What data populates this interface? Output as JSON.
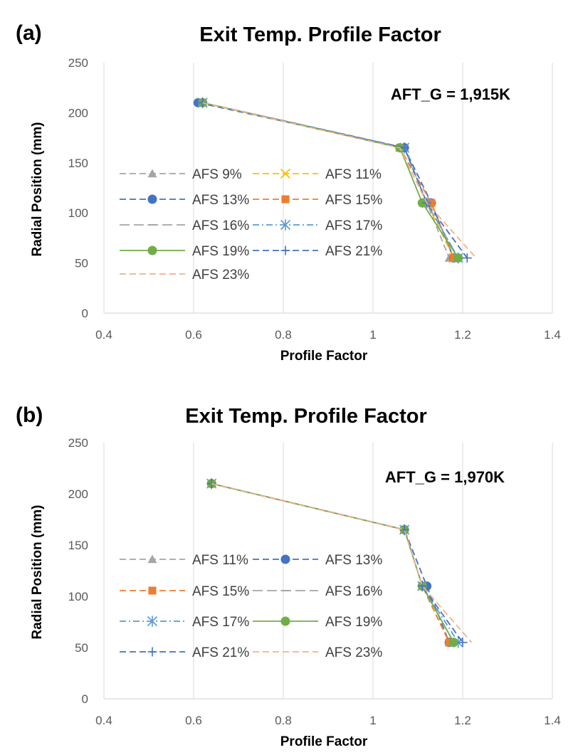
{
  "chart_data": [
    {
      "type": "line",
      "panel_label": "(a)",
      "title": "Exit Temp. Profile Factor",
      "xlabel": "Profile Factor",
      "ylabel": "Radial Position (mm)",
      "xlim": [
        0.4,
        1.4
      ],
      "ylim": [
        0,
        250
      ],
      "xticks": [
        0.4,
        0.6,
        0.8,
        1,
        1.2,
        1.4
      ],
      "xtick_labels": [
        "0.4",
        "0.6",
        "0.8",
        "1",
        "1.2",
        "1.4"
      ],
      "yticks": [
        0,
        50,
        100,
        150,
        200,
        250
      ],
      "ytick_labels": [
        "0",
        "50",
        "100",
        "150",
        "200",
        "250"
      ],
      "grid": "vertical",
      "annotation": "AFT_G = 1,915K",
      "legend_position": "center-left",
      "legend_columns": 2,
      "y": [
        210,
        165,
        110,
        55
      ],
      "series": [
        {
          "name": "AFS 9%",
          "marker": "triangle",
          "color": "#a5a5a5",
          "dash": "dash",
          "x": [
            0.62,
            1.06,
            1.12,
            1.17
          ]
        },
        {
          "name": "AFS 11%",
          "marker": "x",
          "color": "#ffc000",
          "dash": "dash",
          "x": [
            0.62,
            1.07,
            1.12,
            1.18
          ]
        },
        {
          "name": "AFS 13%",
          "marker": "circle",
          "color": "#4472c4",
          "dash": "dash",
          "x": [
            0.61,
            1.07,
            1.13,
            1.18
          ]
        },
        {
          "name": "AFS 15%",
          "marker": "square",
          "color": "#ed7d31",
          "dash": "dash",
          "x": [
            0.62,
            1.06,
            1.13,
            1.18
          ]
        },
        {
          "name": "AFS 16%",
          "marker": "dash",
          "color": "#a5a5a5",
          "dash": "longdash",
          "x": [
            0.62,
            1.07,
            1.12,
            1.19
          ]
        },
        {
          "name": "AFS 17%",
          "marker": "asterisk",
          "color": "#5b9bd5",
          "dash": "dashdot",
          "x": [
            0.62,
            1.07,
            1.12,
            1.19
          ]
        },
        {
          "name": "AFS 19%",
          "marker": "circle",
          "color": "#70ad47",
          "dash": "solid",
          "x": [
            0.62,
            1.06,
            1.11,
            1.19
          ]
        },
        {
          "name": "AFS 21%",
          "marker": "plus",
          "color": "#4472c4",
          "dash": "dash",
          "x": [
            0.62,
            1.07,
            1.12,
            1.21
          ]
        },
        {
          "name": "AFS 23%",
          "marker": "none",
          "color": "#f4b183",
          "dash": "dash",
          "x": [
            0.62,
            1.06,
            1.12,
            1.23
          ]
        }
      ]
    },
    {
      "type": "line",
      "panel_label": "(b)",
      "title": "Exit Temp. Profile Factor",
      "xlabel": "Profile Factor",
      "ylabel": "Radial Position (mm)",
      "xlim": [
        0.4,
        1.4
      ],
      "ylim": [
        0,
        250
      ],
      "xticks": [
        0.4,
        0.6,
        0.8,
        1,
        1.2,
        1.4
      ],
      "xtick_labels": [
        "0.4",
        "0.6",
        "0.8",
        "1",
        "1.2",
        "1.4"
      ],
      "yticks": [
        0,
        50,
        100,
        150,
        200,
        250
      ],
      "ytick_labels": [
        "0",
        "50",
        "100",
        "150",
        "200",
        "250"
      ],
      "grid": "vertical",
      "annotation": "AFT_G = 1,970K",
      "legend_position": "center-left",
      "legend_columns": 2,
      "y": [
        210,
        165,
        110,
        55
      ],
      "series": [
        {
          "name": "AFS 11%",
          "marker": "triangle",
          "color": "#a5a5a5",
          "dash": "dash",
          "x": [
            0.64,
            1.07,
            1.11,
            1.17
          ]
        },
        {
          "name": "AFS 13%",
          "marker": "circle",
          "color": "#4472c4",
          "dash": "dash",
          "x": [
            0.64,
            1.07,
            1.12,
            1.17
          ]
        },
        {
          "name": "AFS 15%",
          "marker": "square",
          "color": "#ed7d31",
          "dash": "dash",
          "x": [
            0.64,
            1.07,
            1.11,
            1.17
          ]
        },
        {
          "name": "AFS 16%",
          "marker": "dash",
          "color": "#a5a5a5",
          "dash": "longdash",
          "x": [
            0.64,
            1.07,
            1.11,
            1.18
          ]
        },
        {
          "name": "AFS 17%",
          "marker": "asterisk",
          "color": "#5b9bd5",
          "dash": "dashdot",
          "x": [
            0.64,
            1.07,
            1.11,
            1.19
          ]
        },
        {
          "name": "AFS 19%",
          "marker": "circle",
          "color": "#70ad47",
          "dash": "solid",
          "x": [
            0.64,
            1.07,
            1.11,
            1.18
          ]
        },
        {
          "name": "AFS 21%",
          "marker": "plus",
          "color": "#4472c4",
          "dash": "dash",
          "x": [
            0.64,
            1.07,
            1.11,
            1.2
          ]
        },
        {
          "name": "AFS 23%",
          "marker": "none",
          "color": "#f4b183",
          "dash": "dash",
          "x": [
            0.64,
            1.07,
            1.11,
            1.22
          ]
        }
      ]
    }
  ]
}
